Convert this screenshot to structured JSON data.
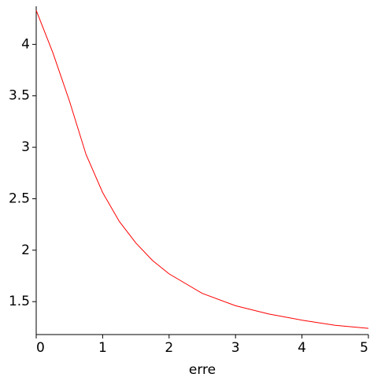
{
  "chart_data": {
    "type": "line",
    "x_label": "erre",
    "x": [
      0,
      0.25,
      0.5,
      0.75,
      1,
      1.25,
      1.5,
      1.75,
      2,
      2.5,
      3,
      3.5,
      4,
      4.5,
      5
    ],
    "series": [
      {
        "color": "#ff0000",
        "values": [
          4.33,
          3.92,
          3.45,
          2.93,
          2.56,
          2.28,
          2.07,
          1.9,
          1.77,
          1.58,
          1.46,
          1.38,
          1.32,
          1.27,
          1.24
        ]
      }
    ],
    "xlim": [
      0,
      5
    ],
    "ylim": [
      1.18,
      4.37
    ],
    "xticks": [
      0,
      1,
      2,
      3,
      4,
      5
    ],
    "yticks": [
      1.5,
      2,
      2.5,
      3,
      3.5,
      4
    ]
  }
}
